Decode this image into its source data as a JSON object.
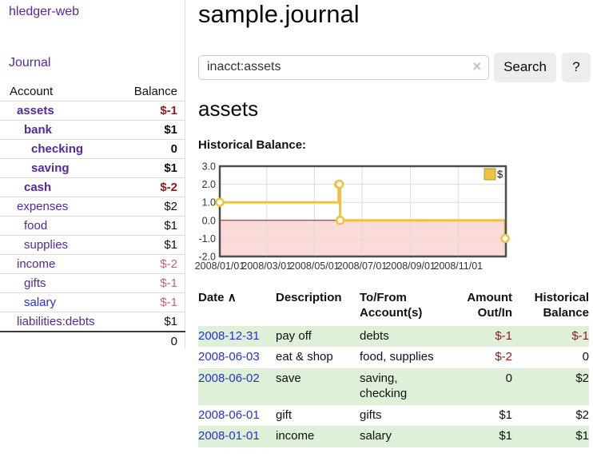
{
  "app": {
    "title": "hledger-web",
    "nav_journal": "Journal"
  },
  "colors": {
    "purple": "#53299c",
    "link-blue": "#2630d8",
    "neg": "#8e1c1c",
    "neg-light": "#c26a6a",
    "row-green": "#dff0d8",
    "btn-bg": "#ededed"
  },
  "icons": {
    "clear": "×",
    "sort_asc": "∧"
  },
  "sidebar": {
    "headers": {
      "account": "Account",
      "balance": "Balance"
    },
    "accounts": [
      {
        "name": "assets",
        "balance": "$-1"
      },
      {
        "name": "bank",
        "balance": "$1"
      },
      {
        "name": "checking",
        "balance": "0"
      },
      {
        "name": "saving",
        "balance": "$1"
      },
      {
        "name": "cash",
        "balance": "$-2"
      },
      {
        "name": "expenses",
        "balance": "$2"
      },
      {
        "name": "food",
        "balance": "$1"
      },
      {
        "name": "supplies",
        "balance": "$1"
      },
      {
        "name": "income",
        "balance": "$-2"
      },
      {
        "name": "gifts",
        "balance": "$-1"
      },
      {
        "name": "salary",
        "balance": "$-1"
      },
      {
        "name": "liabilities:debts",
        "balance": "$1"
      }
    ],
    "total": "0"
  },
  "main": {
    "title": "sample.journal",
    "search": {
      "value": "inacct:assets",
      "button_label": "Search",
      "help_label": "?"
    },
    "account_heading": "assets",
    "chart_label": "Historical Balance:"
  },
  "chart_data": {
    "type": "line",
    "step": true,
    "title": "Historical Balance",
    "series": [
      {
        "name": "$",
        "points": [
          [
            "2008-01-01",
            1
          ],
          [
            "2008-06-01",
            2
          ],
          [
            "2008-06-02",
            2
          ],
          [
            "2008-06-03",
            0
          ],
          [
            "2008-12-31",
            -1
          ]
        ]
      }
    ],
    "xlim": [
      "2008-01-01",
      "2009-01-01"
    ],
    "ylim": [
      -2,
      3
    ],
    "yticks": [
      {
        "v": 3,
        "label": "3.0"
      },
      {
        "v": 2,
        "label": "2.0"
      },
      {
        "v": 1,
        "label": "1.0"
      },
      {
        "v": 0,
        "label": "0.0"
      },
      {
        "v": -1,
        "label": "-1.0"
      },
      {
        "v": -2,
        "label": "-2.0"
      }
    ],
    "xticks": [
      {
        "v": "2008-01-01",
        "label": "2008/01/01"
      },
      {
        "v": "2008-03-01",
        "label": "2008/03/01"
      },
      {
        "v": "2008-05-01",
        "label": "2008/05/01"
      },
      {
        "v": "2008-07-01",
        "label": "2008/07/01"
      },
      {
        "v": "2008-09-01",
        "label": "2008/09/01"
      },
      {
        "v": "2008-11-01",
        "label": "2008/11/01"
      }
    ],
    "legend_position": "top-right",
    "grid": true,
    "colors": {
      "series": "#edc240",
      "marker_fill": "#ffffff",
      "negative_region": "#fbdada",
      "zero_line": "#c00000",
      "grid": "#dcdcdc",
      "border": "#4d4d4d"
    }
  },
  "register": {
    "headers": {
      "date": "Date",
      "description": "Description",
      "tofrom": "To/From Account(s)",
      "amount": "Amount Out/In",
      "balance": "Historical Balance"
    },
    "rows": [
      {
        "date": "2008-12-31",
        "description": "pay off",
        "accounts": "debts",
        "amount": "$-1",
        "balance": "$-1"
      },
      {
        "date": "2008-06-03",
        "description": "eat & shop",
        "accounts": "food, supplies",
        "amount": "$-2",
        "balance": "0"
      },
      {
        "date": "2008-06-02",
        "description": "save",
        "accounts": "saving,\nchecking",
        "amount": "0",
        "balance": "$2"
      },
      {
        "date": "2008-06-01",
        "description": "gift",
        "accounts": "gifts",
        "amount": "$1",
        "balance": "$2"
      },
      {
        "date": "2008-01-01",
        "description": "income",
        "accounts": "salary",
        "amount": "$1",
        "balance": "$1"
      }
    ]
  }
}
